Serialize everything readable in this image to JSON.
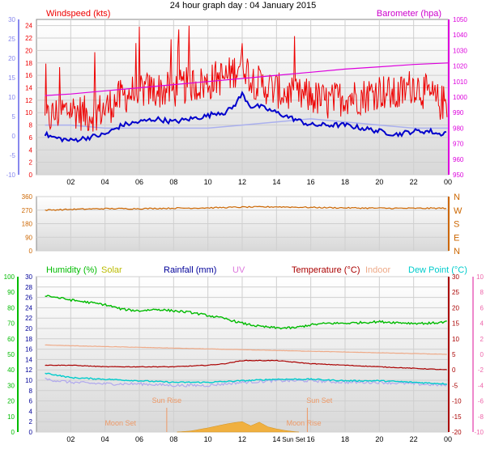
{
  "header": {
    "title": "24 hour graph day : 04 January 2015"
  },
  "x_axis": {
    "ticks": [
      "02",
      "04",
      "06",
      "08",
      "10",
      "12",
      "14",
      "16",
      "18",
      "20",
      "22",
      "00"
    ]
  },
  "panels": {
    "wind": {
      "left_title": "Windspeed (kts)",
      "right_title": "Barometer (hpa)"
    },
    "direction": {
      "compass": [
        "N",
        "W",
        "S",
        "E",
        "N"
      ]
    },
    "climate": {
      "legend": [
        {
          "label": "Humidity (%)",
          "color": "#00bb00"
        },
        {
          "label": "Solar",
          "color": "#bbbb00"
        },
        {
          "label": "Rainfall (mm)",
          "color": "#000099"
        },
        {
          "label": "UV",
          "color": "#dd77dd"
        },
        {
          "label": "Temperature (°C)",
          "color": "#aa0000"
        },
        {
          "label": "Indoor",
          "color": "#eeaa88"
        },
        {
          "label": "Dew Point (°C)",
          "color": "#00cccc"
        }
      ],
      "annotations": {
        "sun_rise": "Sun Rise",
        "sun_set": "Sun Set",
        "moon_set": "Moon Set",
        "moon_rise": "Moon Rise",
        "sun_set_bottom": "Sun Set"
      }
    }
  },
  "colors": {
    "windspeed": "#ee0000",
    "wind_avg": "#0000cc",
    "barometer": "#dd00dd",
    "wind_light": "#aab0ee",
    "direction": "#cc6600",
    "humidity": "#00bb00",
    "temperature": "#aa0000",
    "indoor": "#eeaa88",
    "dewpoint": "#00cccc",
    "solar": "#f0b040"
  },
  "chart_data": [
    {
      "type": "line",
      "title": "24 hour graph day : 04 January 2015",
      "x_range": [
        0,
        24
      ],
      "xlabel": "",
      "y_left": {
        "label": "Windspeed (kts)",
        "range": [
          0,
          25
        ],
        "ticks": [
          0,
          2,
          4,
          6,
          8,
          10,
          12,
          14,
          16,
          18,
          20,
          22,
          24
        ]
      },
      "y_left_outer": {
        "range": [
          -10,
          30
        ],
        "ticks": [
          -10,
          -5,
          0,
          5,
          10,
          15,
          20,
          25,
          30
        ]
      },
      "y_right": {
        "label": "Barometer (hpa)",
        "range": [
          950,
          1050
        ],
        "ticks": [
          950,
          960,
          970,
          980,
          990,
          1000,
          1010,
          1020,
          1030,
          1040,
          1050
        ]
      },
      "series": [
        {
          "name": "Windspeed (kts)",
          "axis": "left",
          "style": "gust-noise",
          "x": [
            0.5,
            1,
            2,
            3,
            4,
            5,
            6,
            7,
            8,
            9,
            10,
            10.5,
            11,
            11.5,
            12,
            12.5,
            13,
            14,
            15,
            16,
            17,
            18,
            19,
            20,
            21,
            22,
            23,
            23.5,
            24
          ],
          "y": [
            8,
            9,
            10,
            9,
            10,
            12,
            13,
            13,
            13,
            14,
            14,
            15,
            15,
            16,
            18,
            15,
            14,
            13,
            12,
            12,
            11,
            12,
            12,
            13,
            12,
            14,
            12,
            11,
            11
          ]
        },
        {
          "name": "Windspeed average",
          "axis": "left",
          "x": [
            0.5,
            1,
            2,
            3,
            4,
            5,
            6,
            7,
            8,
            9,
            10,
            10.5,
            11,
            11.5,
            12,
            12.5,
            13,
            14,
            15,
            16,
            17,
            18,
            19,
            20,
            21,
            22,
            23,
            23.5,
            24
          ],
          "y": [
            6.5,
            6,
            5.5,
            6,
            6.5,
            8,
            8.5,
            9,
            8.5,
            9,
            9.5,
            10,
            10,
            11,
            13,
            11,
            11,
            10,
            9,
            8,
            8,
            8,
            7.5,
            7,
            6.5,
            7,
            7,
            6.5,
            7
          ]
        },
        {
          "name": "Wind (light)",
          "axis": "left",
          "x": [
            0.5,
            2,
            4,
            6,
            8,
            10,
            12,
            14,
            16,
            18,
            20,
            22,
            24
          ],
          "y": [
            8,
            8,
            7.5,
            7.5,
            7.5,
            7.5,
            8,
            8.5,
            9,
            8.5,
            8,
            7.5,
            7.5
          ]
        },
        {
          "name": "Barometer (hpa)",
          "axis": "right",
          "x": [
            0.5,
            2,
            4,
            6,
            8,
            10,
            12,
            14,
            16,
            18,
            20,
            22,
            24
          ],
          "y": [
            1001,
            1002,
            1004,
            1006,
            1008,
            1010,
            1012,
            1014,
            1016,
            1018,
            1019.5,
            1021,
            1022
          ]
        }
      ]
    },
    {
      "type": "line",
      "title": "",
      "x_range": [
        0,
        24
      ],
      "y_left": {
        "range": [
          0,
          360
        ],
        "ticks": [
          0,
          90,
          180,
          270,
          360
        ]
      },
      "series": [
        {
          "name": "Wind direction",
          "x": [
            0.5,
            2,
            4,
            6,
            8,
            10,
            12,
            14,
            16,
            18,
            20,
            22,
            24
          ],
          "y": [
            270,
            275,
            280,
            280,
            283,
            285,
            290,
            292,
            288,
            285,
            283,
            282,
            283
          ]
        }
      ]
    },
    {
      "type": "line",
      "title": "",
      "x_range": [
        0,
        24
      ],
      "y_left_outer": {
        "label": "Humidity (%)",
        "range": [
          0,
          100
        ],
        "ticks": [
          0,
          10,
          20,
          30,
          40,
          50,
          60,
          70,
          80,
          90,
          100
        ]
      },
      "y_left": {
        "label": "Rainfall (mm)",
        "range": [
          0,
          30
        ],
        "ticks": [
          0,
          2,
          4,
          6,
          8,
          10,
          12,
          14,
          16,
          18,
          20,
          22,
          24,
          26,
          28,
          30
        ]
      },
      "y_right": {
        "label": "Temperature (°C)",
        "range": [
          -20,
          30
        ],
        "ticks": [
          -20,
          -15,
          -10,
          -5,
          0,
          5,
          10,
          15,
          20,
          25,
          30
        ]
      },
      "y_right_outer": {
        "range": [
          -10,
          10
        ],
        "ticks": [
          -10,
          -8,
          -6,
          -4,
          -2,
          0,
          2,
          4,
          6,
          8,
          10
        ]
      },
      "series": [
        {
          "name": "Humidity (%)",
          "axis": "left_outer",
          "x": [
            0.5,
            2,
            4,
            5,
            6,
            7,
            8,
            9,
            10,
            11,
            12,
            13,
            14,
            15,
            16,
            17,
            18,
            20,
            22,
            23,
            24
          ],
          "y": [
            88,
            85,
            82,
            79,
            78,
            79,
            78,
            77,
            75,
            73,
            70,
            68,
            67,
            67,
            69,
            70,
            70,
            71,
            70,
            70,
            71
          ]
        },
        {
          "name": "Indoor",
          "axis": "right",
          "x": [
            0.5,
            4,
            8,
            12,
            16,
            20,
            24
          ],
          "y": [
            8,
            7.5,
            7,
            6.5,
            6,
            5.5,
            5
          ]
        },
        {
          "name": "Temperature (°C)",
          "axis": "right",
          "x": [
            0.5,
            2,
            4,
            6,
            8,
            10,
            11,
            12,
            13,
            14,
            15,
            16,
            18,
            20,
            22,
            24
          ],
          "y": [
            1.5,
            1.5,
            1,
            1,
            1,
            1.5,
            2,
            3,
            3,
            3,
            2.5,
            2,
            1.5,
            1,
            0.5,
            0
          ]
        },
        {
          "name": "Dew Point (°C)",
          "axis": "right",
          "x": [
            0.5,
            2,
            4,
            6,
            8,
            10,
            12,
            14,
            16,
            18,
            20,
            22,
            24
          ],
          "y": [
            -1,
            -2.5,
            -3,
            -3.5,
            -4,
            -4,
            -3.5,
            -3,
            -3,
            -3.5,
            -3.5,
            -4,
            -4.5
          ]
        },
        {
          "name": "Dew Point (light)",
          "axis": "right",
          "x": [
            0.5,
            2,
            4,
            6,
            8,
            10,
            12,
            14,
            16,
            18,
            20,
            22,
            24
          ],
          "y": [
            -3,
            -4,
            -4.5,
            -4.5,
            -5,
            -5,
            -4,
            -3.5,
            -3.5,
            -4,
            -4,
            -4.5,
            -5
          ]
        },
        {
          "name": "Solar",
          "axis": "left",
          "type": "area",
          "x": [
            8.2,
            9,
            10,
            11,
            11.5,
            12,
            12.5,
            13,
            13.5,
            14,
            14.5,
            15,
            15.3
          ],
          "y": [
            0,
            0.2,
            0.8,
            1.5,
            1.8,
            2,
            1.2,
            1.9,
            1,
            0.6,
            0.3,
            0.1,
            0
          ]
        }
      ]
    }
  ]
}
